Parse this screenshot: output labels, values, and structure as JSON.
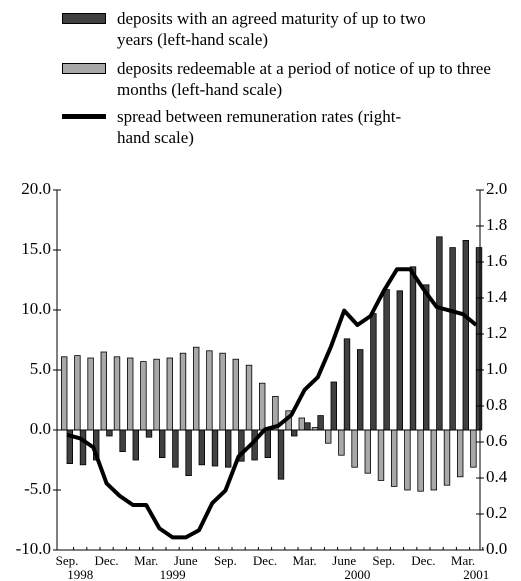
{
  "chart_data": {
    "type": "bar",
    "categories": [
      "Sep.",
      null,
      null,
      "Dec.",
      null,
      null,
      "Mar.",
      null,
      null,
      "June",
      null,
      null,
      "Sep.",
      null,
      null,
      "Dec.",
      null,
      null,
      "Mar.",
      null,
      null,
      "June",
      null,
      null,
      "Sep.",
      null,
      null,
      "Dec.",
      null,
      null,
      "Mar.",
      null
    ],
    "year_labels": [
      null,
      "1998",
      null,
      null,
      null,
      null,
      null,
      null,
      "1999",
      null,
      null,
      null,
      null,
      null,
      null,
      null,
      null,
      null,
      null,
      null,
      null,
      null,
      "2000",
      null,
      null,
      null,
      null,
      null,
      null,
      null,
      null,
      "2001"
    ],
    "series": [
      {
        "name": "deposits with an agreed maturity of up to two years (left-hand scale)",
        "type": "bar",
        "color": "#404040",
        "values": [
          -2.8,
          -2.9,
          -2.5,
          -0.5,
          -1.8,
          -2.5,
          -0.6,
          -2.3,
          -3.1,
          -3.8,
          -2.9,
          -3.0,
          -3.1,
          -2.6,
          -2.5,
          -2.3,
          -4.1,
          -0.5,
          0.6,
          1.2,
          4.0,
          7.6,
          6.7,
          9.7,
          11.7,
          11.6,
          13.6,
          12.1,
          16.1,
          15.2,
          15.8,
          15.2
        ]
      },
      {
        "name": "deposits redeemable at a period of notice of up to three months (left-hand scale)",
        "type": "bar",
        "color": "#a8a8a8",
        "values": [
          6.1,
          6.2,
          6.0,
          6.5,
          6.1,
          6.0,
          5.7,
          5.9,
          6.0,
          6.4,
          6.9,
          6.6,
          6.4,
          5.9,
          5.4,
          3.9,
          2.8,
          1.6,
          1.0,
          0.2,
          -1.1,
          -2.1,
          -3.1,
          -3.6,
          -4.2,
          -4.7,
          -5.0,
          -5.1,
          -5.0,
          -4.6,
          -3.9,
          -3.1
        ]
      },
      {
        "name": "spread between remuneration rates (right-hand scale)",
        "type": "line",
        "color": "#000000",
        "axis": "y2",
        "values": [
          0.64,
          0.62,
          0.57,
          0.37,
          0.3,
          0.25,
          0.25,
          0.12,
          0.07,
          0.07,
          0.11,
          0.26,
          0.33,
          0.52,
          0.59,
          0.67,
          0.69,
          0.75,
          0.89,
          0.96,
          1.13,
          1.33,
          1.25,
          1.3,
          1.44,
          1.56,
          1.56,
          1.45,
          1.35,
          1.33,
          1.31,
          1.25
        ]
      }
    ],
    "ylim": [
      -10,
      20
    ],
    "yticks": [
      {
        "value": -10,
        "label": "-10.0"
      },
      {
        "value": -5,
        "label": "-5.0"
      },
      {
        "value": 0,
        "label": "0.0"
      },
      {
        "value": 5,
        "label": "5.0"
      },
      {
        "value": 10,
        "label": "10.0"
      },
      {
        "value": 15,
        "label": "15.0"
      },
      {
        "value": 20,
        "label": "20.0"
      }
    ],
    "y2lim": [
      0,
      2
    ],
    "y2ticks": [
      {
        "value": 0,
        "label": "0.0"
      },
      0.2,
      0.4,
      0.6,
      0.8,
      {
        "value": 1,
        "label": "1.0"
      },
      1.2,
      1.4,
      1.6,
      1.8,
      {
        "value": 2,
        "label": "2.0"
      }
    ],
    "legend": "top"
  }
}
